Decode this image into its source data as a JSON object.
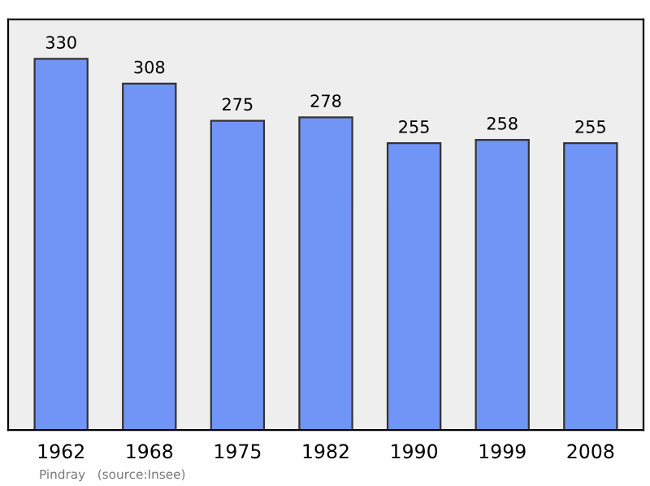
{
  "chart_data": {
    "type": "bar",
    "categories": [
      "1962",
      "1968",
      "1975",
      "1982",
      "1990",
      "1999",
      "2008"
    ],
    "values": [
      330,
      308,
      275,
      278,
      255,
      258,
      255
    ],
    "color": "#7195f6",
    "ylim": [
      0,
      365
    ],
    "data_labels": true,
    "grid": false,
    "annotations": [
      "Pindray   (source:Insee)"
    ]
  }
}
